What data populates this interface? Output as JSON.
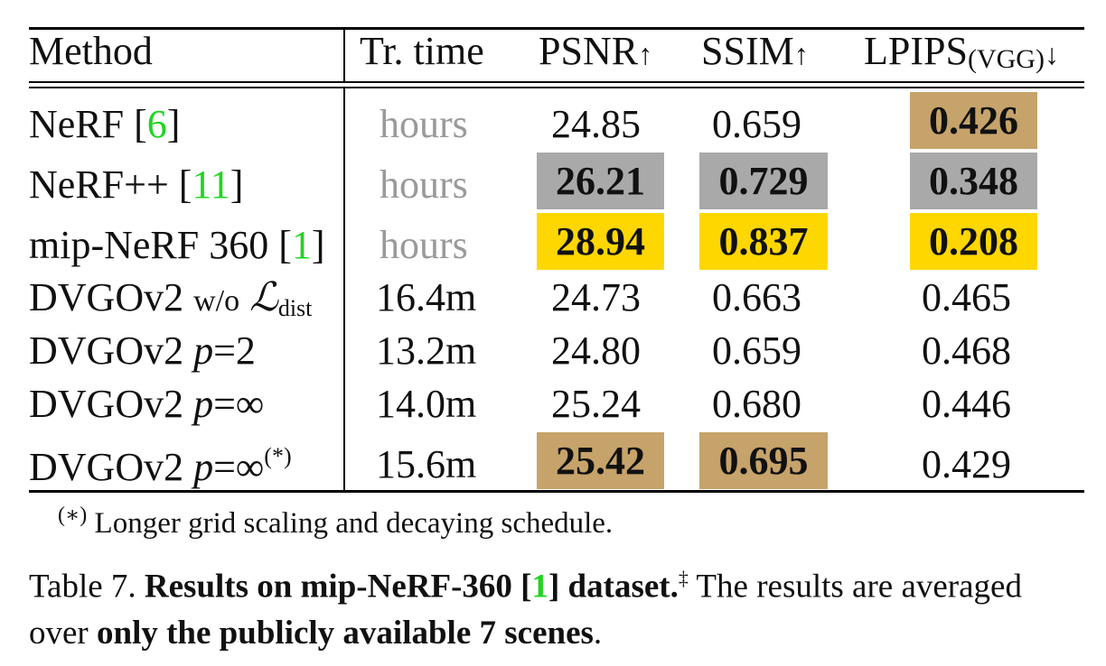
{
  "header": {
    "method": "Method",
    "tr_time": "Tr. time",
    "psnr": "PSNR",
    "ssim": "SSIM",
    "lpips": "LPIPS",
    "lpips_sub": "(VGG)",
    "arrow_up": "↑",
    "arrow_down": "↓"
  },
  "rows": [
    {
      "method_name": "NeRF [",
      "method_ref": "6",
      "method_end": "]",
      "time": "hours",
      "psnr": "24.85",
      "ssim": "0.659",
      "lpips": "0.426"
    },
    {
      "method_name": "NeRF++ [",
      "method_ref": "11",
      "method_end": "]",
      "time": "hours",
      "psnr": "26.21",
      "ssim": "0.729",
      "lpips": "0.348"
    },
    {
      "method_name": "mip-NeRF 360 [",
      "method_ref": "1",
      "method_end": "]",
      "time": "hours",
      "psnr": "28.94",
      "ssim": "0.837",
      "lpips": "0.208"
    },
    {
      "method_name": "DVGOv2 ",
      "method_mid": "w/o",
      "method_L": "ℒ",
      "method_sub": "dist",
      "time": "16.4m",
      "psnr": "24.73",
      "ssim": "0.663",
      "lpips": "0.465"
    },
    {
      "method_name": "DVGOv2 ",
      "method_p": "p",
      "method_val": "=2",
      "time": "13.2m",
      "psnr": "24.80",
      "ssim": "0.659",
      "lpips": "0.468"
    },
    {
      "method_name": "DVGOv2 ",
      "method_p": "p",
      "method_val": "=∞",
      "time": "14.0m",
      "psnr": "25.24",
      "ssim": "0.680",
      "lpips": "0.446"
    },
    {
      "method_name": "DVGOv2 ",
      "method_p": "p",
      "method_val": "=∞",
      "method_sup": "(*)",
      "time": "15.6m",
      "psnr": "25.42",
      "ssim": "0.695",
      "lpips": "0.429"
    }
  ],
  "highlight_colors": {
    "first": "#FFD700",
    "second": "#A9A9A9",
    "third": "#C6A36A",
    "reference_link": "#1FD51F",
    "muted_time": "#9A9A9A"
  },
  "footnote": {
    "mark": "(∗)",
    "text": " Longer grid scaling and decaying schedule."
  },
  "caption": {
    "label": "Table 7. ",
    "bold1": "Results on mip-NeRF-360 [",
    "ref": "1",
    "bold2": "] dataset.",
    "dagger": "‡",
    "text1": " The results are averaged over ",
    "bold3": "only the publicly available 7 scenes",
    "text2": "."
  }
}
